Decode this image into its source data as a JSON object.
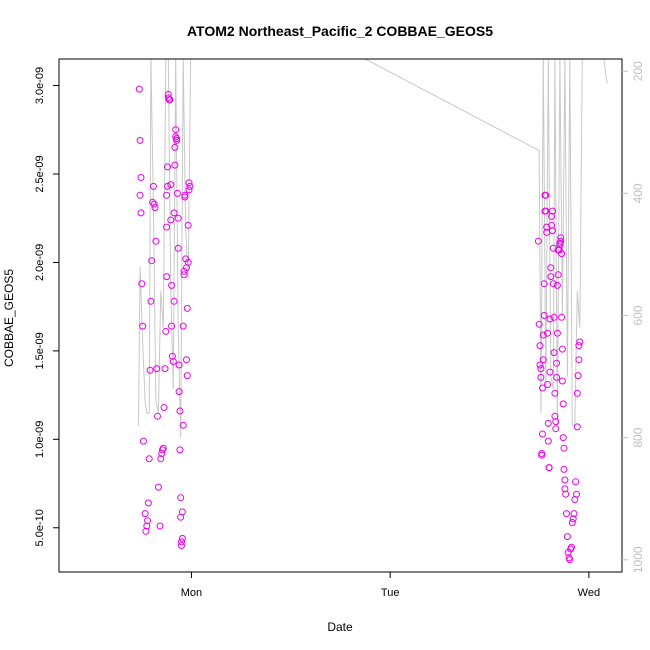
{
  "chart_data": {
    "type": "scatter",
    "title": "ATOM2 Northeast_Pacific_2 COBBAE_GEOS5",
    "xlabel": "Date",
    "ylabel": "COBBAE_GEOS5",
    "x_axis": {
      "range_hours": [
        -16,
        52
      ],
      "ticks": [
        {
          "label": "Mon",
          "hour": 0
        },
        {
          "label": "Tue",
          "hour": 24
        },
        {
          "label": "Wed",
          "hour": 48
        }
      ]
    },
    "y_axis": {
      "range": [
        2.5e-10,
        3.15e-09
      ],
      "ticks": [
        {
          "label": "5.0e-10",
          "value": 5e-10
        },
        {
          "label": "1.0e-09",
          "value": 1e-09
        },
        {
          "label": "1.5e-09",
          "value": 1.5e-09
        },
        {
          "label": "2.0e-09",
          "value": 2e-09
        },
        {
          "label": "2.5e-09",
          "value": 2.5e-09
        },
        {
          "label": "3.0e-09",
          "value": 3e-09
        }
      ]
    },
    "y2_axis": {
      "label": "",
      "range": [
        1020,
        180
      ],
      "ticks": [
        "200",
        "400",
        "600",
        "800",
        "1000"
      ]
    },
    "series": [
      {
        "color": "#ee00ee",
        "marker": "open-circle",
        "points": [
          [
            -6.3,
            2.98e-09
          ],
          [
            -6.2,
            2.69e-09
          ],
          [
            -6.1,
            2.48e-09
          ],
          [
            -6.2,
            2.38e-09
          ],
          [
            -6.1,
            2.28e-09
          ],
          [
            -6.0,
            1.88e-09
          ],
          [
            -5.9,
            1.64e-09
          ],
          [
            -5.8,
            9.9e-10
          ],
          [
            -5.6,
            5.8e-10
          ],
          [
            -5.5,
            4.8e-10
          ],
          [
            -5.4,
            5.1e-10
          ],
          [
            -5.3,
            5.4e-10
          ],
          [
            -5.2,
            6.4e-10
          ],
          [
            -5.1,
            8.9e-10
          ],
          [
            -5.0,
            1.39e-09
          ],
          [
            -4.9,
            1.78e-09
          ],
          [
            -4.8,
            2.01e-09
          ],
          [
            -4.7,
            2.34e-09
          ],
          [
            -4.6,
            2.43e-09
          ],
          [
            -4.5,
            2.33e-09
          ],
          [
            -4.4,
            2.31e-09
          ],
          [
            -4.3,
            2.12e-09
          ],
          [
            -4.2,
            1.4e-09
          ],
          [
            -4.1,
            1.13e-09
          ],
          [
            -4.0,
            7.3e-10
          ],
          [
            -3.8,
            5.1e-10
          ],
          [
            -3.7,
            8.9e-10
          ],
          [
            -3.6,
            9.2e-10
          ],
          [
            -3.5,
            9.4e-10
          ],
          [
            -3.4,
            9.5e-10
          ],
          [
            -3.3,
            1.18e-09
          ],
          [
            -3.2,
            1.4e-09
          ],
          [
            -3.1,
            1.61e-09
          ],
          [
            -3.0,
            1.92e-09
          ],
          [
            -3.0,
            2.2e-09
          ],
          [
            -3.0,
            2.38e-09
          ],
          [
            -2.9,
            2.43e-09
          ],
          [
            -2.9,
            2.54e-09
          ],
          [
            -2.8,
            2.95e-09
          ],
          [
            -2.8,
            2.93e-09
          ],
          [
            -2.7,
            2.92e-09
          ],
          [
            -2.6,
            2.92e-09
          ],
          [
            -2.6,
            2.92e-09
          ],
          [
            -2.5,
            2.44e-09
          ],
          [
            -2.5,
            2.24e-09
          ],
          [
            -2.4,
            1.87e-09
          ],
          [
            -2.4,
            1.64e-09
          ],
          [
            -2.3,
            1.47e-09
          ],
          [
            -2.2,
            1.44e-09
          ],
          [
            -2.1,
            1.78e-09
          ],
          [
            -2.1,
            2.28e-09
          ],
          [
            -2.0,
            2.55e-09
          ],
          [
            -2.0,
            2.65e-09
          ],
          [
            -1.9,
            2.71e-09
          ],
          [
            -1.9,
            2.75e-09
          ],
          [
            -1.8,
            2.69e-09
          ],
          [
            -1.8,
            2.7e-09
          ],
          [
            -1.7,
            2.39e-09
          ],
          [
            -1.6,
            2.25e-09
          ],
          [
            -1.6,
            2.08e-09
          ],
          [
            -1.5,
            1.42e-09
          ],
          [
            -1.5,
            1.27e-09
          ],
          [
            -1.4,
            1.16e-09
          ],
          [
            -1.4,
            9.4e-10
          ],
          [
            -1.3,
            6.7e-10
          ],
          [
            -1.3,
            5.6e-10
          ],
          [
            -1.2,
            4e-10
          ],
          [
            -1.2,
            4.2e-10
          ],
          [
            -1.1,
            4.4e-10
          ],
          [
            -1.1,
            5.9e-10
          ],
          [
            -1.0,
            1.08e-09
          ],
          [
            -1.0,
            1.64e-09
          ],
          [
            -0.9,
            1.93e-09
          ],
          [
            -0.9,
            1.95e-09
          ],
          [
            -0.8,
            2.38e-09
          ],
          [
            -0.8,
            2.37e-09
          ],
          [
            -0.7,
            2.02e-09
          ],
          [
            -0.6,
            1.97e-09
          ],
          [
            -0.6,
            1.45e-09
          ],
          [
            -0.5,
            1.36e-09
          ],
          [
            -0.5,
            1.74e-09
          ],
          [
            -0.4,
            2e-09
          ],
          [
            -0.4,
            2.21e-09
          ],
          [
            -0.3,
            2.41e-09
          ],
          [
            -0.3,
            2.45e-09
          ],
          [
            -0.2,
            2.43e-09
          ],
          [
            41.9,
            2.12e-09
          ],
          [
            42.0,
            1.65e-09
          ],
          [
            42.1,
            1.53e-09
          ],
          [
            42.1,
            1.42e-09
          ],
          [
            42.2,
            1.4e-09
          ],
          [
            42.2,
            1.35e-09
          ],
          [
            42.3,
            9.2e-10
          ],
          [
            42.3,
            9.1e-10
          ],
          [
            42.4,
            1.03e-09
          ],
          [
            42.4,
            1.29e-09
          ],
          [
            42.5,
            1.45e-09
          ],
          [
            42.5,
            1.59e-09
          ],
          [
            42.6,
            1.7e-09
          ],
          [
            42.6,
            1.88e-09
          ],
          [
            42.7,
            2.29e-09
          ],
          [
            42.7,
            2.38e-09
          ],
          [
            42.8,
            2.38e-09
          ],
          [
            42.8,
            2.29e-09
          ],
          [
            42.9,
            2.2e-09
          ],
          [
            42.9,
            2.17e-09
          ],
          [
            43.0,
            1.6e-09
          ],
          [
            43.0,
            1.31e-09
          ],
          [
            43.1,
            1.09e-09
          ],
          [
            43.1,
            9.9e-10
          ],
          [
            43.2,
            8.4e-10
          ],
          [
            43.2,
            8.4e-10
          ],
          [
            43.3,
            1.38e-09
          ],
          [
            43.3,
            1.68e-09
          ],
          [
            43.4,
            1.92e-09
          ],
          [
            43.4,
            1.97e-09
          ],
          [
            43.5,
            2.21e-09
          ],
          [
            43.5,
            2.26e-09
          ],
          [
            43.6,
            2.29e-09
          ],
          [
            43.6,
            2.18e-09
          ],
          [
            43.7,
            2.08e-09
          ],
          [
            43.7,
            1.88e-09
          ],
          [
            43.8,
            1.69e-09
          ],
          [
            43.8,
            1.49e-09
          ],
          [
            43.9,
            1.26e-09
          ],
          [
            43.9,
            1.13e-09
          ],
          [
            44.0,
            1.06e-09
          ],
          [
            44.0,
            1.1e-09
          ],
          [
            44.1,
            1.35e-09
          ],
          [
            44.1,
            1.43e-09
          ],
          [
            44.2,
            1.6e-09
          ],
          [
            44.2,
            1.87e-09
          ],
          [
            44.3,
            1.93e-09
          ],
          [
            44.3,
            2.07e-09
          ],
          [
            44.4,
            2.07e-09
          ],
          [
            44.4,
            2.07e-09
          ],
          [
            44.5,
            2.11e-09
          ],
          [
            44.5,
            2.1e-09
          ],
          [
            44.6,
            2.14e-09
          ],
          [
            44.6,
            2.12e-09
          ],
          [
            44.7,
            2.05e-09
          ],
          [
            44.7,
            1.69e-09
          ],
          [
            44.8,
            1.51e-09
          ],
          [
            44.8,
            1.33e-09
          ],
          [
            44.9,
            1.2e-09
          ],
          [
            44.9,
            1.01e-09
          ],
          [
            45.0,
            9.5e-10
          ],
          [
            45.0,
            8.3e-10
          ],
          [
            45.1,
            7.7e-10
          ],
          [
            45.1,
            7.2e-10
          ],
          [
            45.2,
            6.9e-10
          ],
          [
            45.3,
            5.8e-10
          ],
          [
            45.4,
            4.5e-10
          ],
          [
            45.5,
            3.6e-10
          ],
          [
            45.6,
            3.3e-10
          ],
          [
            45.7,
            3.2e-10
          ],
          [
            45.8,
            3.8e-10
          ],
          [
            45.9,
            3.9e-10
          ],
          [
            46.0,
            5.3e-10
          ],
          [
            46.1,
            5.5e-10
          ],
          [
            46.2,
            5.8e-10
          ],
          [
            46.3,
            6.6e-10
          ],
          [
            46.4,
            7.6e-10
          ],
          [
            46.5,
            6.9e-10
          ],
          [
            46.6,
            1.07e-09
          ],
          [
            46.6,
            1.26e-09
          ],
          [
            46.7,
            1.36e-09
          ],
          [
            46.8,
            1.45e-09
          ],
          [
            46.8,
            1.53e-09
          ],
          [
            46.9,
            1.55e-09
          ]
        ]
      }
    ],
    "line": {
      "color": "#c8c8c8",
      "y2_points": [
        [
          -6.4,
          780
        ],
        [
          -6.2,
          520
        ],
        [
          -5.9,
          640
        ],
        [
          -5.6,
          740
        ],
        [
          -5.4,
          760
        ],
        [
          -5.1,
          760
        ],
        [
          -4.9,
          180
        ],
        [
          -4.6,
          420
        ],
        [
          -4.3,
          740
        ],
        [
          -4.0,
          760
        ],
        [
          -3.7,
          560
        ],
        [
          -3.4,
          620
        ],
        [
          -3.1,
          180
        ],
        [
          -2.8,
          180
        ],
        [
          -2.5,
          560
        ],
        [
          -2.2,
          720
        ],
        [
          -1.9,
          180
        ],
        [
          -1.6,
          620
        ],
        [
          -1.3,
          800
        ],
        [
          -1.0,
          180
        ],
        [
          -0.7,
          460
        ],
        [
          -0.4,
          540
        ],
        [
          -0.1,
          180
        ],
        [
          1.5,
          180
        ],
        [
          21,
          180
        ],
        [
          42.0,
          330
        ],
        [
          42.2,
          760
        ],
        [
          42.5,
          180
        ],
        [
          42.8,
          720
        ],
        [
          43.1,
          180
        ],
        [
          43.4,
          700
        ],
        [
          43.7,
          720
        ],
        [
          43.9,
          180
        ],
        [
          44.2,
          780
        ],
        [
          44.5,
          180
        ],
        [
          44.8,
          600
        ],
        [
          45.1,
          180
        ],
        [
          45.4,
          700
        ],
        [
          45.7,
          180
        ],
        [
          46.0,
          780
        ],
        [
          46.3,
          780
        ],
        [
          46.6,
          560
        ],
        [
          46.9,
          620
        ],
        [
          47.2,
          180
        ],
        [
          49.8,
          180
        ],
        [
          50.2,
          220
        ]
      ]
    },
    "grid": false,
    "legend": "none"
  }
}
